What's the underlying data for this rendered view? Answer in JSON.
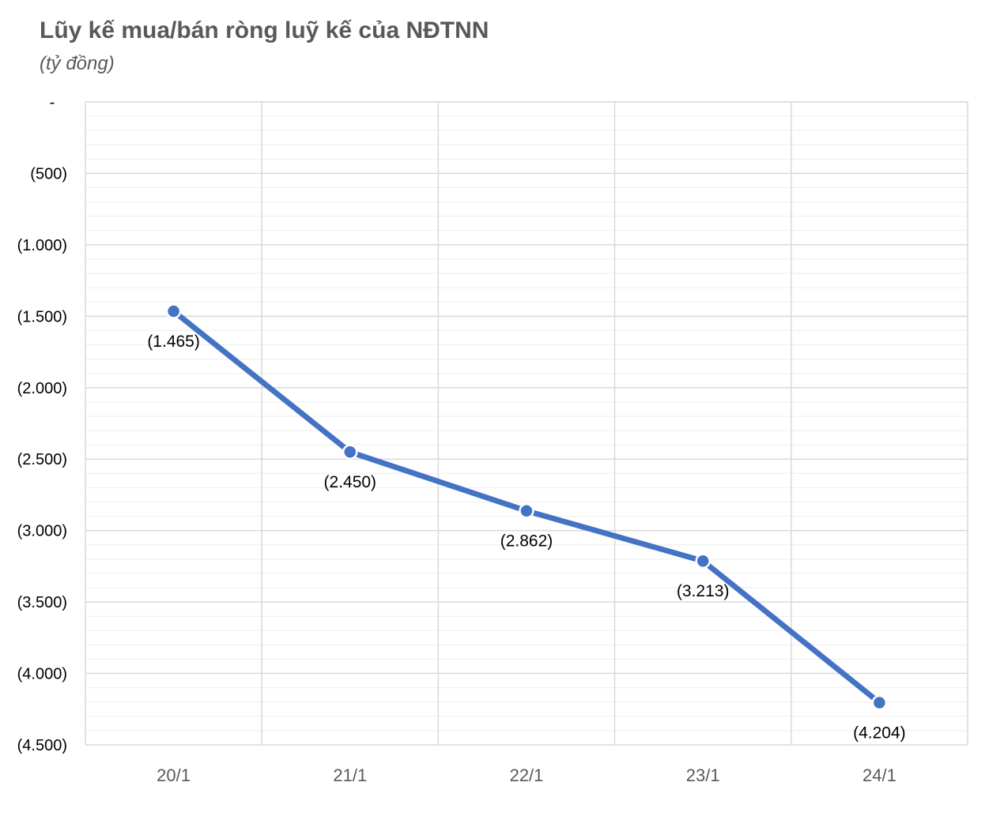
{
  "title": "Lũy kế mua/bán ròng luỹ kế của NĐTNN",
  "subtitle": "(tỷ đồng)",
  "colors": {
    "series": "#4472C4",
    "grid_major": "#D9D9D9",
    "grid_minor": "#EEEEEE",
    "axis_text": "#595959"
  },
  "chart_data": {
    "type": "line",
    "title": "Lũy kế mua/bán ròng luỹ kế của NĐTNN",
    "subtitle": "(tỷ đồng)",
    "categories": [
      "20/1",
      "21/1",
      "22/1",
      "23/1",
      "24/1"
    ],
    "series": [
      {
        "values": [
          -1465,
          -2450,
          -2862,
          -3213,
          -4204
        ],
        "data_labels": [
          "(1.465)",
          "(2.450)",
          "(2.862)",
          "(3.213)",
          "(4.204)"
        ]
      }
    ],
    "ylim": [
      -4500,
      0
    ],
    "y_ticks": [
      0,
      -500,
      -1000,
      -1500,
      -2000,
      -2500,
      -3000,
      -3500,
      -4000,
      -4500
    ],
    "y_tick_labels": [
      "-",
      "(500)",
      "(1.000)",
      "(1.500)",
      "(2.000)",
      "(2.500)",
      "(3.000)",
      "(3.500)",
      "(4.000)",
      "(4.500)"
    ],
    "grid": true,
    "legend": "none"
  }
}
